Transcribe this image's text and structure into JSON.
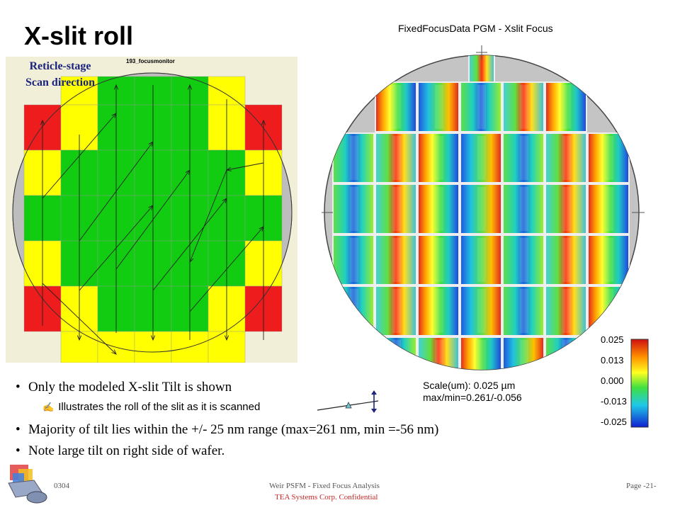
{
  "slide": {
    "title": "X-slit roll",
    "scan_label_line1": "Reticle-stage",
    "scan_label_line2": "Scan direction",
    "left_panel_tag": "193_focusmonitor",
    "right_title": "FixedFocusData PGM - Xslit Focus"
  },
  "colorbar": {
    "labels": [
      "0.025",
      "0.013",
      "0.000",
      "-0.013",
      "-0.025"
    ]
  },
  "scale_caption": {
    "line1": "Scale(um): 0.025 µm",
    "line2": "max/min=0.261/-0.056"
  },
  "bullets": [
    "Only the modeled X-slit Tilt is shown",
    "Majority of tilt lies within the +/- 25 nm range (max=261 nm, min =-56 nm)",
    "Note large tilt on right side of wafer."
  ],
  "sub_bullet": "Illustrates the roll of the slit as it is scanned",
  "footer": {
    "left": "0304",
    "center": "Weir PSFM - Fixed Focus Analysis",
    "confidential": "TEA Systems Corp. Confidential",
    "right": "Page -21-"
  },
  "colors": {
    "red": "#ee1c1c",
    "yellow": "#ffff00",
    "green": "#11cc11",
    "wafer_gray": "#bdbdbd"
  }
}
